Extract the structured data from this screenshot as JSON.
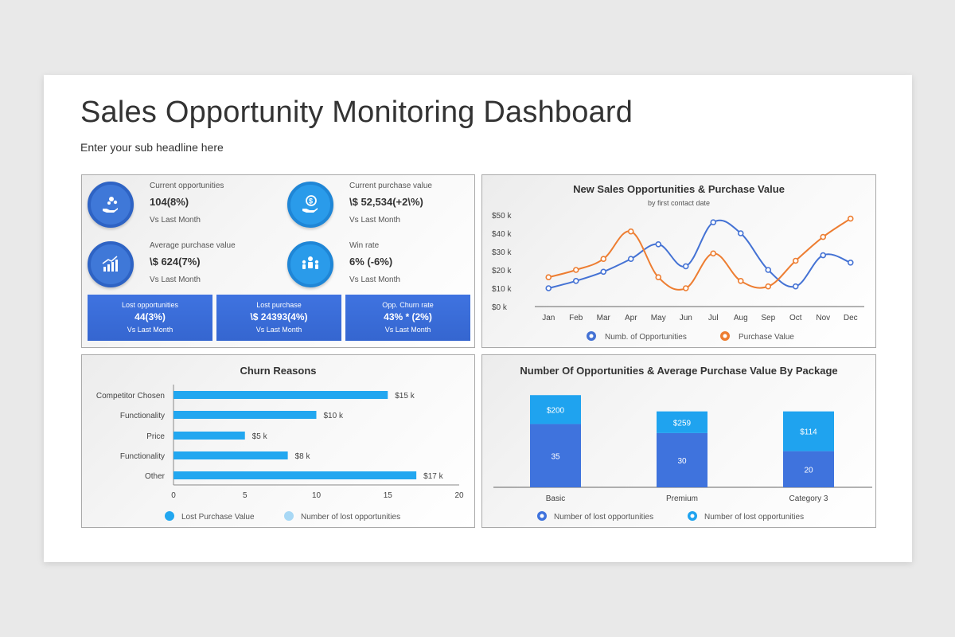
{
  "header": {
    "title": "Sales Opportunity Monitoring Dashboard",
    "subtitle": "Enter your sub headline here"
  },
  "kpis": [
    {
      "label": "Current opportunities",
      "value": "104(8%)",
      "sub": "Vs Last Month",
      "icon": "hand-coins-icon"
    },
    {
      "label": "Current purchase value",
      "value": "\\$ 52,534(+2\\%)",
      "sub": "Vs Last Month",
      "icon": "dollar-hand-icon"
    },
    {
      "label": "Average purchase value",
      "value": "\\$ 624(7%)",
      "sub": "Vs Last Month",
      "icon": "growth-chart-icon"
    },
    {
      "label": "Win rate",
      "value": "6% (-6%)",
      "sub": "Vs Last Month",
      "icon": "team-icon"
    }
  ],
  "tiles": [
    {
      "label": "Lost opportunities",
      "value": "44(3%)",
      "sub": "Vs Last Month"
    },
    {
      "label": "Lost purchase",
      "value": "\\$ 24393(4%)",
      "sub": "Vs Last Month"
    },
    {
      "label": "Opp. Churn rate",
      "value": "43% * (2%)",
      "sub": "Vs Last Month"
    }
  ],
  "colors": {
    "blue": "#4472d4",
    "orange": "#ed7d31",
    "lightblue": "#22a7f0",
    "tile": "#3a6bd6"
  },
  "chart_data": [
    {
      "type": "line",
      "title": "New Sales Opportunities & Purchase Value",
      "subtitle": "by first contact date",
      "categories": [
        "Jan",
        "Feb",
        "Mar",
        "Apr",
        "May",
        "Jun",
        "Jul",
        "Aug",
        "Sep",
        "Oct",
        "Nov",
        "Dec"
      ],
      "yticks": [
        "$0 k",
        "$10 k",
        "$20 k",
        "$30 k",
        "$40 k",
        "$50 k"
      ],
      "ylim": [
        0,
        50
      ],
      "series": [
        {
          "name": "Numb. of Opportunities",
          "values": [
            10,
            14,
            19,
            26,
            34,
            22,
            46,
            40,
            20,
            11,
            28,
            24
          ],
          "color": "#4472d4"
        },
        {
          "name": "Purchase Value",
          "values": [
            16,
            20,
            26,
            41,
            16,
            10,
            29,
            14,
            11,
            25,
            38,
            48
          ],
          "color": "#ed7d31"
        }
      ],
      "legend": "bottom"
    },
    {
      "type": "bar",
      "orientation": "horizontal",
      "title": "Churn Reasons",
      "categories": [
        "Competitor Chosen",
        "Functionality",
        "Price",
        "Functionality",
        "Other"
      ],
      "values": [
        15,
        10,
        5,
        8,
        17
      ],
      "labels": [
        "$15 k",
        "$10 k",
        "$5 k",
        "$8 k",
        "$17 k"
      ],
      "xticks": [
        "0",
        "5",
        "10",
        "15",
        "20"
      ],
      "xlim": [
        0,
        20
      ],
      "legend_items": [
        {
          "name": "Lost Purchase Value",
          "color": "#22a7f0"
        },
        {
          "name": "Number of lost opportunities",
          "color": "#a8d8f5"
        }
      ],
      "legend": "bottom"
    },
    {
      "type": "bar",
      "stacked": true,
      "title": "Number Of Opportunities & Average Purchase Value By Package",
      "categories": [
        "Basic",
        "Premium",
        "Category 3"
      ],
      "series": [
        {
          "name": "Number of lost opportunities",
          "values": [
            35,
            30,
            20
          ],
          "labels": [
            "35",
            "30",
            "20"
          ],
          "color": "#3f73dd"
        },
        {
          "name": "Number of lost opportunities",
          "values": [
            16,
            12,
            22
          ],
          "labels": [
            "$200",
            "$259",
            "$114"
          ],
          "color": "#1fa3ef"
        }
      ],
      "legend": "bottom"
    }
  ]
}
